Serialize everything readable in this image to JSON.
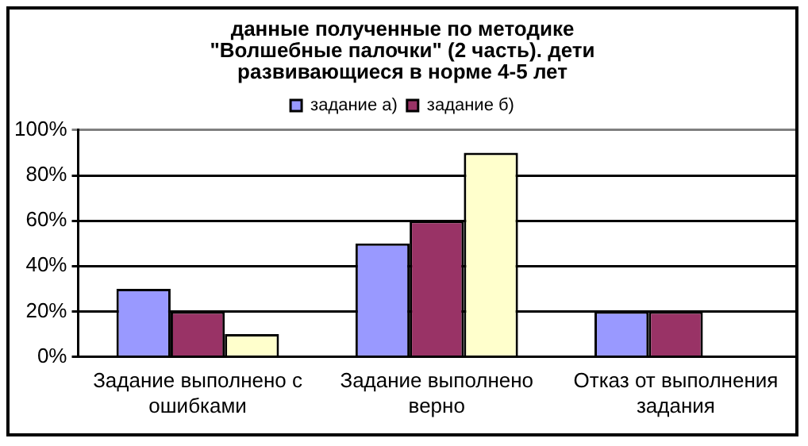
{
  "chart_data": {
    "type": "bar",
    "title": "данные полученные по методике \"Волшебные палочки\" (2 часть). дети развивающиеся в норме 4-5 лет",
    "categories": [
      "Задание выполнено с ошибками",
      "Задание выполнено верно",
      "Отказ от выполнения задания"
    ],
    "series": [
      {
        "name": "задание а)",
        "color": "#9999ff",
        "values": [
          30,
          50,
          20
        ]
      },
      {
        "name": "задание б)",
        "color": "#993366",
        "values": [
          20,
          60,
          20
        ]
      },
      {
        "color": "#ffffcc",
        "values": [
          10,
          90,
          0
        ]
      }
    ],
    "ylim": [
      0,
      100
    ],
    "yticks": [
      {
        "value": 0,
        "label": "0%"
      },
      {
        "value": 20,
        "label": "20%"
      },
      {
        "value": 40,
        "label": "40%"
      },
      {
        "value": 60,
        "label": "60%"
      },
      {
        "value": 80,
        "label": "80%"
      },
      {
        "value": 100,
        "label": "100%"
      }
    ],
    "grid": "y",
    "legend": "top"
  }
}
